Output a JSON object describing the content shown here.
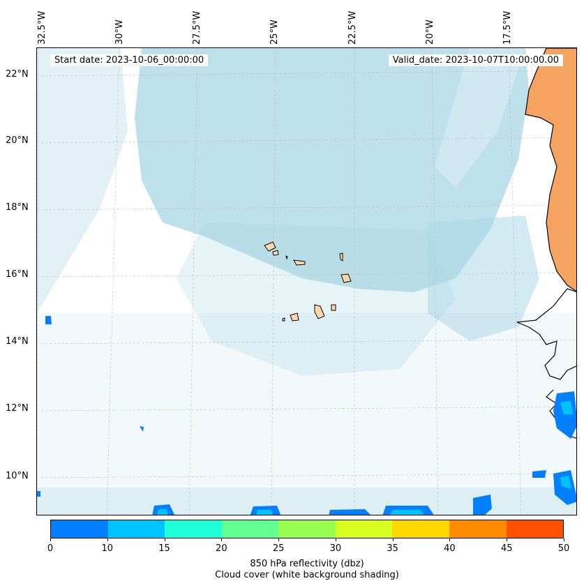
{
  "header": {
    "start_label": "Start date: 2023-10-06_00:00:00",
    "valid_label": "Valid_date: 2023-10-07T10:00:00.00"
  },
  "map": {
    "lon_labels": [
      "32.5°W",
      "30°W",
      "27.5°W",
      "25°W",
      "22.5°W",
      "20°W",
      "17.5°W"
    ],
    "lat_labels": [
      "22°N",
      "20°N",
      "18°N",
      "16°N",
      "14°N",
      "12°N",
      "10°N"
    ],
    "colors": {
      "cloud": "#add8e6",
      "land_africa": "#f4a460",
      "islands": "#ffd8b0",
      "coastline": "#000000",
      "grid": "#bbbbbb"
    }
  },
  "colorbar": {
    "ticks": [
      "0",
      "10",
      "15",
      "20",
      "25",
      "30",
      "35",
      "40",
      "45",
      "50"
    ],
    "colors": [
      "#0080ff",
      "#00c4ff",
      "#20ffd8",
      "#60ff90",
      "#98ff50",
      "#d8ff20",
      "#ffd800",
      "#ff8c00",
      "#ff5000"
    ],
    "label": "850 hPa reflectivity (dbz)",
    "label2": "Cloud cover (white background shading)"
  }
}
